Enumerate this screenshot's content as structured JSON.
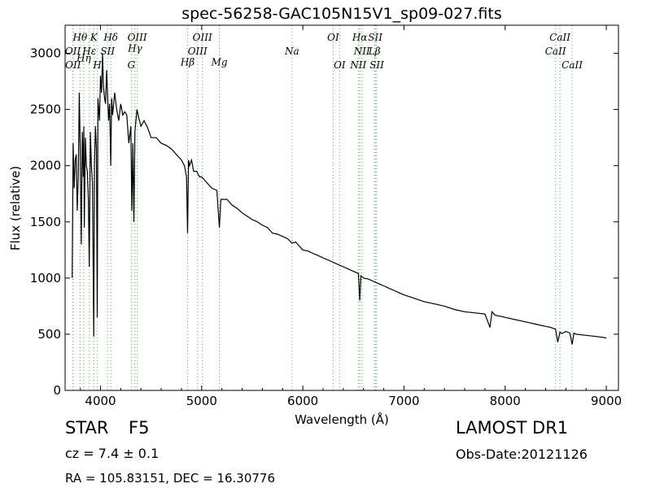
{
  "chart_data": {
    "type": "line",
    "title": "spec-56258-GAC105N15V1_sp09-027.fits",
    "xlabel": "Wavelength (Å)",
    "ylabel": "Flux (relative)",
    "xlim": [
      3650,
      9120
    ],
    "ylim": [
      0,
      3250
    ],
    "xticks": [
      4000,
      5000,
      6000,
      7000,
      8000,
      9000
    ],
    "yticks": [
      0,
      500,
      1000,
      1500,
      2000,
      2500,
      3000
    ],
    "grid": false,
    "line_color": "#000000",
    "marker_color": "#4caf50",
    "series": [
      {
        "x": [
          3720,
          3730,
          3740,
          3750,
          3760,
          3770,
          3780,
          3790,
          3800,
          3810,
          3820,
          3830,
          3835,
          3840,
          3850,
          3860,
          3870,
          3880,
          3889,
          3900,
          3910,
          3920,
          3933,
          3940,
          3950,
          3960,
          3968,
          3975,
          3990,
          4000,
          4010,
          4020,
          4030,
          4040,
          4050,
          4060,
          4080,
          4090,
          4101,
          4110,
          4120,
          4140,
          4160,
          4180,
          4200,
          4220,
          4240,
          4260,
          4280,
          4300,
          4310,
          4320,
          4330,
          4340,
          4350,
          4360,
          4380,
          4400,
          4430,
          4460,
          4500,
          4550,
          4600,
          4650,
          4700,
          4750,
          4800,
          4830,
          4850,
          4861,
          4870,
          4880,
          4900,
          4920,
          4950,
          4980,
          5000,
          5050,
          5100,
          5150,
          5175,
          5190,
          5210,
          5250,
          5300,
          5350,
          5400,
          5450,
          5500,
          5550,
          5600,
          5650,
          5700,
          5750,
          5800,
          5850,
          5893,
          5930,
          5950,
          6000,
          6050,
          6100,
          6150,
          6200,
          6250,
          6300,
          6350,
          6400,
          6450,
          6500,
          6550,
          6563,
          6575,
          6600,
          6650,
          6700,
          6750,
          6800,
          6850,
          6900,
          6950,
          7000,
          7100,
          7200,
          7300,
          7400,
          7500,
          7600,
          7700,
          7800,
          7850,
          7870,
          7900,
          8000,
          8100,
          8200,
          8300,
          8400,
          8450,
          8498,
          8520,
          8542,
          8560,
          8600,
          8640,
          8662,
          8680,
          8700,
          8800,
          8900,
          8980,
          9000
        ],
        "y": [
          1000,
          2200,
          1800,
          2050,
          2100,
          1600,
          1900,
          2650,
          2150,
          1300,
          2300,
          1900,
          2350,
          1450,
          2250,
          2000,
          1950,
          1700,
          1100,
          2300,
          2000,
          1850,
          480,
          2000,
          2350,
          2150,
          650,
          2600,
          2400,
          2800,
          2650,
          3000,
          2700,
          2600,
          2550,
          2850,
          2400,
          2550,
          2000,
          2600,
          2450,
          2650,
          2500,
          2400,
          2550,
          2450,
          2480,
          2450,
          2200,
          2350,
          1600,
          2200,
          1500,
          2300,
          2400,
          2500,
          2420,
          2350,
          2400,
          2350,
          2250,
          2250,
          2200,
          2180,
          2150,
          2100,
          2050,
          2000,
          1900,
          1400,
          2050,
          2000,
          2050,
          1950,
          1950,
          1900,
          1900,
          1850,
          1800,
          1780,
          1450,
          1700,
          1700,
          1700,
          1650,
          1620,
          1580,
          1550,
          1520,
          1500,
          1470,
          1450,
          1400,
          1390,
          1370,
          1350,
          1310,
          1320,
          1300,
          1250,
          1240,
          1220,
          1200,
          1180,
          1160,
          1140,
          1120,
          1100,
          1080,
          1060,
          1040,
          800,
          1020,
          1000,
          990,
          970,
          950,
          930,
          910,
          890,
          870,
          850,
          820,
          790,
          770,
          750,
          720,
          700,
          690,
          680,
          560,
          700,
          670,
          650,
          630,
          610,
          590,
          570,
          560,
          545,
          430,
          520,
          505,
          525,
          510,
          410,
          510,
          500,
          490,
          480,
          470,
          465
        ]
      }
    ],
    "line_markers": [
      {
        "label": "Hθ",
        "x": 3798,
        "row": 1
      },
      {
        "label": "OII",
        "x": 3727,
        "row": 2
      },
      {
        "label": "OII",
        "x": 3729,
        "row": 3
      },
      {
        "label": "Hη",
        "x": 3835,
        "row": 2.5
      },
      {
        "label": "K",
        "x": 3934,
        "row": 1
      },
      {
        "label": "Hε",
        "x": 3889,
        "row": 2
      },
      {
        "label": "SII",
        "x": 4070,
        "row": 2
      },
      {
        "label": "H",
        "x": 3969,
        "row": 3
      },
      {
        "label": "Hδ",
        "x": 4102,
        "row": 1
      },
      {
        "label": "OIII",
        "x": 4363,
        "row": 1
      },
      {
        "label": "Hγ",
        "x": 4341,
        "row": 1.8
      },
      {
        "label": "G",
        "x": 4305,
        "row": 3
      },
      {
        "label": "OIII",
        "x": 5007,
        "row": 1
      },
      {
        "label": "OIII",
        "x": 4959,
        "row": 2
      },
      {
        "label": "Hβ",
        "x": 4861,
        "row": 2.8
      },
      {
        "label": "Mg",
        "x": 5175,
        "row": 2.8
      },
      {
        "label": "Na",
        "x": 5893,
        "row": 2
      },
      {
        "label": "OI",
        "x": 6300,
        "row": 1
      },
      {
        "label": "OI",
        "x": 6364,
        "row": 3
      },
      {
        "label": "Hα",
        "x": 6563,
        "row": 1
      },
      {
        "label": "SII",
        "x": 6716,
        "row": 1
      },
      {
        "label": "NII",
        "x": 6584,
        "row": 2
      },
      {
        "label": "Lβ",
        "x": 6708,
        "row": 2
      },
      {
        "label": "NII",
        "x": 6548,
        "row": 3
      },
      {
        "label": "SII",
        "x": 6731,
        "row": 3
      },
      {
        "label": "CaII",
        "x": 8542,
        "row": 1
      },
      {
        "label": "CaII",
        "x": 8498,
        "row": 2
      },
      {
        "label": "CaII",
        "x": 8662,
        "row": 3
      }
    ]
  },
  "info": {
    "object_class": "STAR",
    "subclass": "F5",
    "survey": "LAMOST DR1",
    "cz_text": "cz = 7.4 ± 0.1",
    "obs_date_text": "Obs-Date:20121126",
    "coords_text": "RA = 105.83151, DEC = 16.30776"
  }
}
